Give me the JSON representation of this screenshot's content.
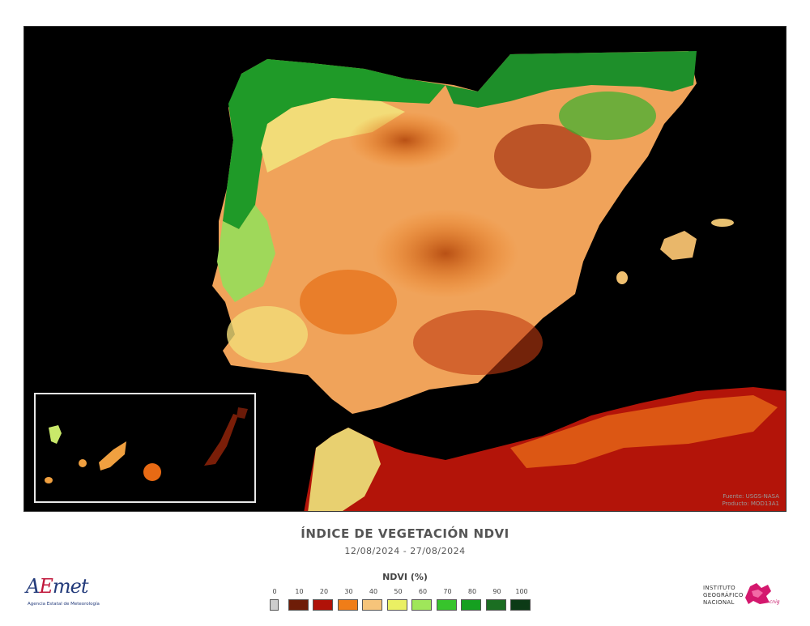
{
  "map": {
    "title": "ÍNDICE DE VEGETACIÓN NDVI",
    "period": "12/08/2024 - 27/08/2024",
    "credit_line1": "Fuente: USGS-NASA",
    "credit_line2": "Producto: MOD13A1",
    "inset_region": "Canary Islands"
  },
  "legend": {
    "title": "NDVI (%)",
    "ticks": [
      "0",
      "10",
      "20",
      "30",
      "40",
      "50",
      "60",
      "70",
      "80",
      "90",
      "100"
    ],
    "colors": [
      "#cccccc",
      "#6e1d08",
      "#b01208",
      "#f07d18",
      "#f6c47a",
      "#eaf063",
      "#9fe65a",
      "#37c42c",
      "#15a020",
      "#1b6e22",
      "#0c3a16"
    ]
  },
  "logos": {
    "aemet_prefix": "A",
    "aemet_e": "E",
    "aemet_suffix": "met",
    "aemet_subtitle": "Agencia Estatal de Meteorología",
    "ign_line1": "INSTITUTO",
    "ign_line2": "GEOGRÁFICO",
    "ign_line3": "NACIONAL",
    "ign_signature": "cnig"
  }
}
